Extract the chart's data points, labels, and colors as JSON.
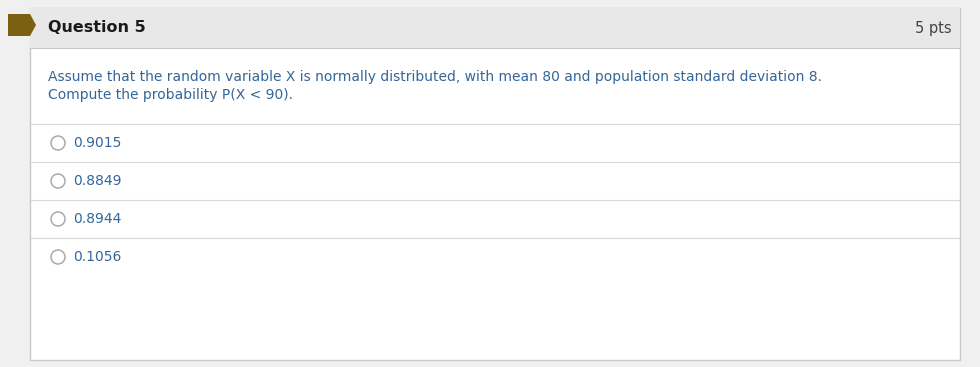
{
  "question_number": "Question 5",
  "points": "5 pts",
  "question_text_line1": "Assume that the random variable X is normally distributed, with mean 80 and population standard deviation 8.",
  "question_text_line2": "Compute the probability P(X < 90).",
  "options": [
    "0.9015",
    "0.8849",
    "0.8944",
    "0.1056"
  ],
  "bg_color": "#f0f0f0",
  "header_bg": "#e8e8e8",
  "body_bg": "#ffffff",
  "border_color": "#c8c8c8",
  "header_text_color": "#1a1a1a",
  "points_text_color": "#444444",
  "question_text_color": "#336699",
  "option_text_color": "#336699",
  "bookmark_color": "#7a6010",
  "divider_color": "#d8d8d8",
  "circle_edge_color": "#aaaaaa",
  "header_font_size": 11.5,
  "points_font_size": 10.5,
  "question_font_size": 10.0,
  "option_font_size": 10.0,
  "fig_width": 9.8,
  "fig_height": 3.67,
  "dpi": 100
}
